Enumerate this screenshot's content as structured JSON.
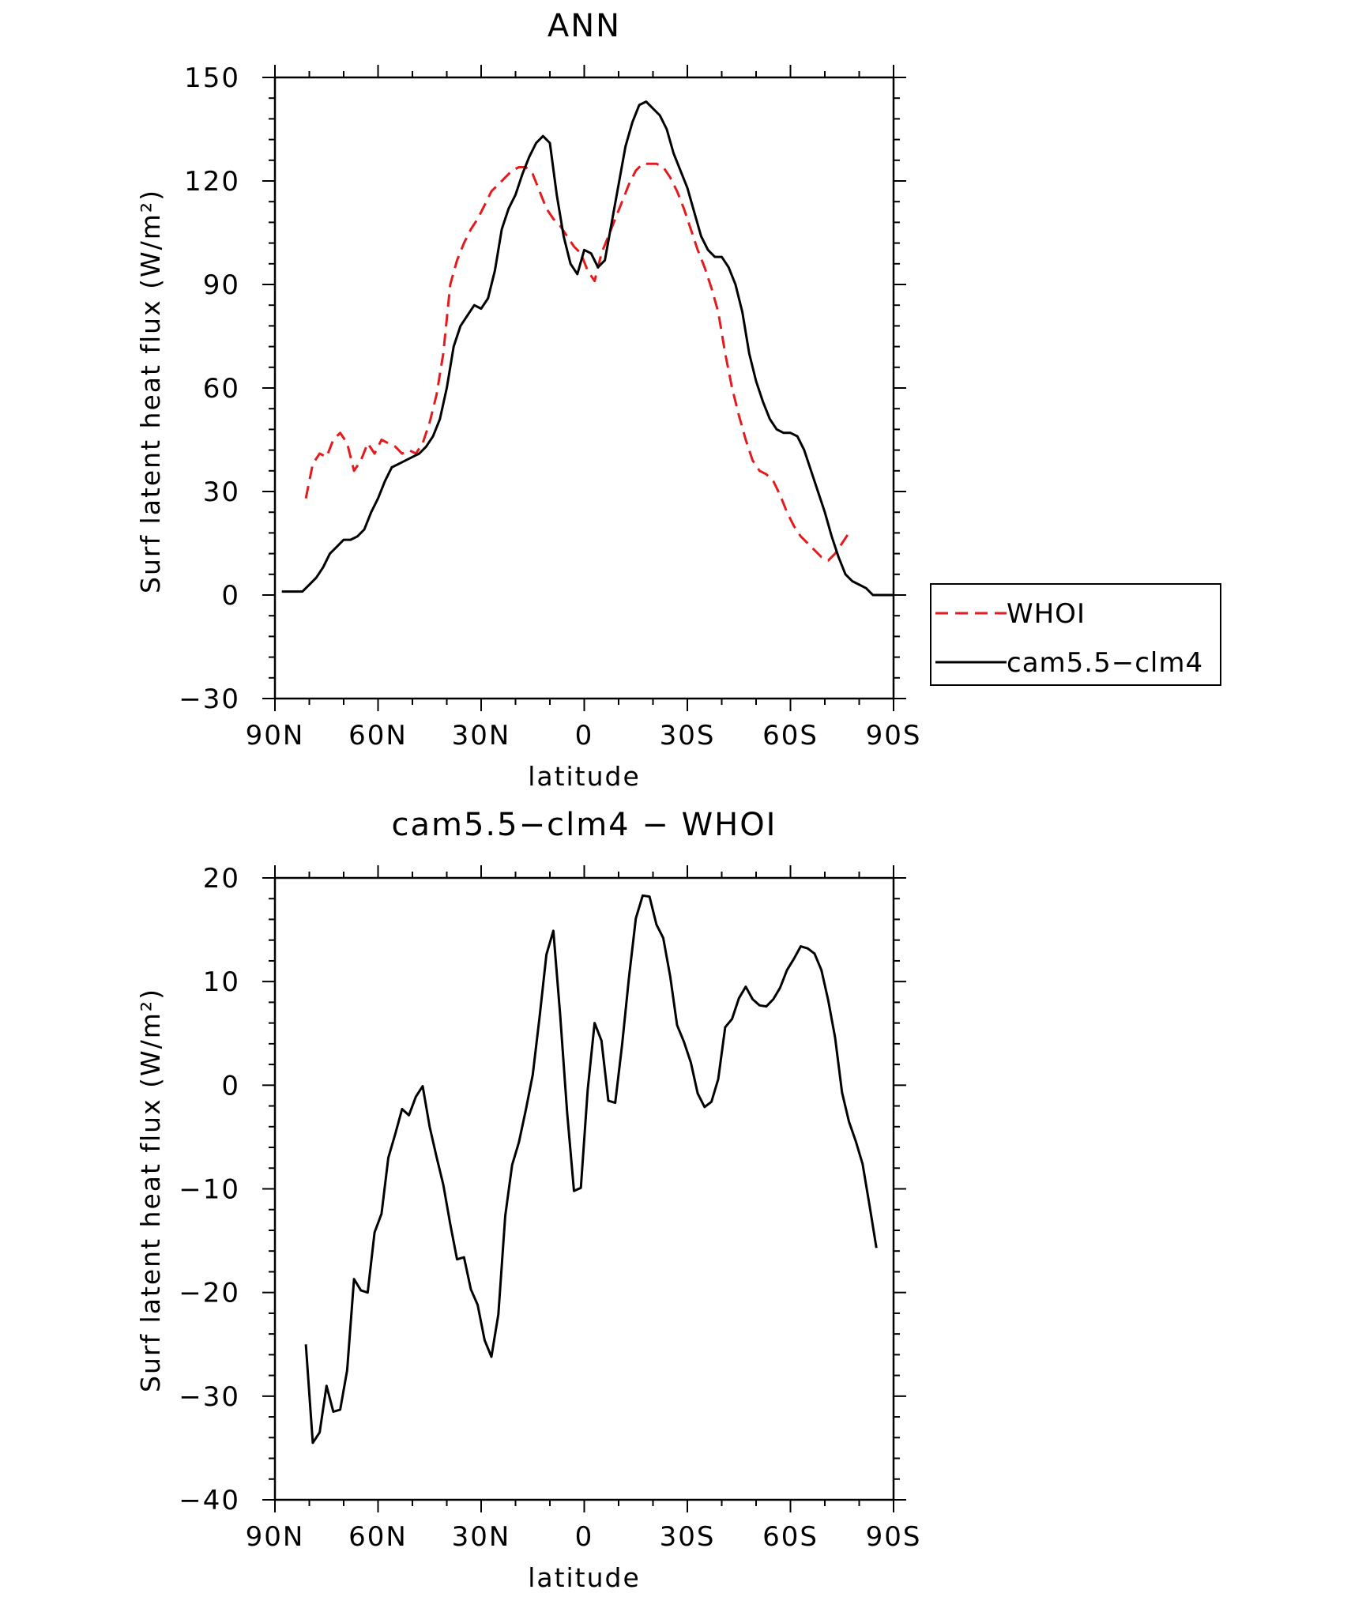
{
  "chart_data": [
    {
      "type": "line",
      "title": "ANN",
      "xlabel": "latitude",
      "ylabel": "Surf latent heat flux (W/m²)",
      "xlim": [
        90,
        -90
      ],
      "ylim": [
        -30,
        150
      ],
      "x_ticks": [
        90,
        60,
        30,
        0,
        -30,
        -60,
        -90
      ],
      "x_tick_labels": [
        "90N",
        "60N",
        "30N",
        "0",
        "30S",
        "60S",
        "90S"
      ],
      "y_ticks": [
        -30,
        0,
        30,
        60,
        90,
        120,
        150
      ],
      "y_tick_labels": [
        "−30",
        "0",
        "30",
        "60",
        "90",
        "120",
        "150"
      ],
      "legend": "right",
      "series": [
        {
          "name": "WHOI",
          "color": "#e41a1c",
          "dash": "dashed",
          "points": [
            [
              81,
              28
            ],
            [
              79,
              38
            ],
            [
              77,
              41
            ],
            [
              75,
              40
            ],
            [
              73,
              45
            ],
            [
              71,
              47
            ],
            [
              69,
              44
            ],
            [
              67,
              36
            ],
            [
              65,
              39
            ],
            [
              63,
              44
            ],
            [
              61,
              41
            ],
            [
              59,
              45
            ],
            [
              57,
              44
            ],
            [
              55,
              43
            ],
            [
              53,
              41
            ],
            [
              51,
              42
            ],
            [
              49,
              41
            ],
            [
              47,
              44
            ],
            [
              45,
              50
            ],
            [
              43,
              58
            ],
            [
              41,
              70
            ],
            [
              39,
              90
            ],
            [
              37,
              97
            ],
            [
              35,
              102
            ],
            [
              33,
              106
            ],
            [
              31,
              109
            ],
            [
              29,
              113
            ],
            [
              27,
              117
            ],
            [
              25,
              119
            ],
            [
              23,
              121
            ],
            [
              21,
              123
            ],
            [
              19,
              124
            ],
            [
              17,
              124
            ],
            [
              15,
              122
            ],
            [
              13,
              117
            ],
            [
              11,
              112
            ],
            [
              9,
              109
            ],
            [
              7,
              107
            ],
            [
              5,
              104
            ],
            [
              3,
              101
            ],
            [
              1,
              99
            ],
            [
              -1,
              94
            ],
            [
              -3,
              91
            ],
            [
              -5,
              99
            ],
            [
              -7,
              104
            ],
            [
              -9,
              109
            ],
            [
              -11,
              114
            ],
            [
              -13,
              119
            ],
            [
              -15,
              123
            ],
            [
              -17,
              125
            ],
            [
              -19,
              125
            ],
            [
              -21,
              125
            ],
            [
              -23,
              124
            ],
            [
              -25,
              121
            ],
            [
              -27,
              117
            ],
            [
              -29,
              112
            ],
            [
              -31,
              106
            ],
            [
              -33,
              100
            ],
            [
              -35,
              95
            ],
            [
              -37,
              89
            ],
            [
              -39,
              82
            ],
            [
              -41,
              70
            ],
            [
              -43,
              60
            ],
            [
              -45,
              52
            ],
            [
              -47,
              45
            ],
            [
              -49,
              39
            ],
            [
              -51,
              36
            ],
            [
              -53,
              35
            ],
            [
              -55,
              33
            ],
            [
              -57,
              29
            ],
            [
              -59,
              24
            ],
            [
              -61,
              20
            ],
            [
              -63,
              17
            ],
            [
              -65,
              15
            ],
            [
              -67,
              13
            ],
            [
              -69,
              11
            ],
            [
              -71,
              10
            ],
            [
              -73,
              12
            ],
            [
              -75,
              15
            ],
            [
              -77,
              18
            ]
          ]
        },
        {
          "name": "cam5.5−clm4",
          "color": "#000000",
          "dash": "solid",
          "points": [
            [
              88,
              1
            ],
            [
              86,
              1
            ],
            [
              84,
              1
            ],
            [
              82,
              1
            ],
            [
              80,
              3
            ],
            [
              78,
              5
            ],
            [
              76,
              8
            ],
            [
              74,
              12
            ],
            [
              72,
              14
            ],
            [
              70,
              16
            ],
            [
              68,
              16
            ],
            [
              66,
              17
            ],
            [
              64,
              19
            ],
            [
              62,
              24
            ],
            [
              60,
              28
            ],
            [
              58,
              33
            ],
            [
              56,
              37
            ],
            [
              54,
              38
            ],
            [
              52,
              39
            ],
            [
              50,
              40
            ],
            [
              48,
              41
            ],
            [
              46,
              43
            ],
            [
              44,
              46
            ],
            [
              42,
              51
            ],
            [
              40,
              60
            ],
            [
              38,
              72
            ],
            [
              36,
              78
            ],
            [
              34,
              81
            ],
            [
              32,
              84
            ],
            [
              30,
              83
            ],
            [
              28,
              86
            ],
            [
              26,
              94
            ],
            [
              24,
              106
            ],
            [
              22,
              112
            ],
            [
              20,
              116
            ],
            [
              18,
              122
            ],
            [
              16,
              127
            ],
            [
              14,
              131
            ],
            [
              12,
              133
            ],
            [
              10,
              131
            ],
            [
              8,
              116
            ],
            [
              6,
              104
            ],
            [
              4,
              96
            ],
            [
              2,
              93
            ],
            [
              0,
              100
            ],
            [
              -2,
              99
            ],
            [
              -4,
              95
            ],
            [
              -6,
              97
            ],
            [
              -8,
              108
            ],
            [
              -10,
              119
            ],
            [
              -12,
              130
            ],
            [
              -14,
              137
            ],
            [
              -16,
              142
            ],
            [
              -18,
              143
            ],
            [
              -20,
              141
            ],
            [
              -22,
              139
            ],
            [
              -24,
              135
            ],
            [
              -26,
              128
            ],
            [
              -28,
              123
            ],
            [
              -30,
              118
            ],
            [
              -32,
              111
            ],
            [
              -34,
              104
            ],
            [
              -36,
              100
            ],
            [
              -38,
              98
            ],
            [
              -40,
              98
            ],
            [
              -42,
              95
            ],
            [
              -44,
              90
            ],
            [
              -46,
              82
            ],
            [
              -48,
              70
            ],
            [
              -50,
              62
            ],
            [
              -52,
              56
            ],
            [
              -54,
              51
            ],
            [
              -56,
              48
            ],
            [
              -58,
              47
            ],
            [
              -60,
              47
            ],
            [
              -62,
              46
            ],
            [
              -64,
              42
            ],
            [
              -66,
              36
            ],
            [
              -68,
              30
            ],
            [
              -70,
              24
            ],
            [
              -72,
              17
            ],
            [
              -74,
              11
            ],
            [
              -76,
              6
            ],
            [
              -78,
              4
            ],
            [
              -80,
              3
            ],
            [
              -82,
              2
            ],
            [
              -84,
              0
            ],
            [
              -86,
              0
            ],
            [
              -88,
              0
            ],
            [
              -90,
              0
            ]
          ]
        }
      ]
    },
    {
      "type": "line",
      "title": "cam5.5−clm4 − WHOI",
      "xlabel": "latitude",
      "ylabel": "Surf latent heat flux (W/m²)",
      "xlim": [
        90,
        -90
      ],
      "ylim": [
        -40,
        20
      ],
      "x_ticks": [
        90,
        60,
        30,
        0,
        -30,
        -60,
        -90
      ],
      "x_tick_labels": [
        "90N",
        "60N",
        "30N",
        "0",
        "30S",
        "60S",
        "90S"
      ],
      "y_ticks": [
        -40,
        -30,
        -20,
        -10,
        0,
        10,
        20
      ],
      "y_tick_labels": [
        "−40",
        "−30",
        "−20",
        "−10",
        "0",
        "10",
        "20"
      ],
      "series": [
        {
          "name": "",
          "color": "#000000",
          "dash": "solid",
          "points": [
            [
              81,
              -25
            ],
            [
              79,
              -34.5
            ],
            [
              77,
              -33.5
            ],
            [
              75,
              -29
            ],
            [
              73,
              -31.5
            ],
            [
              71,
              -31.3
            ],
            [
              69,
              -27.5
            ],
            [
              67,
              -18.7
            ],
            [
              65,
              -19.8
            ],
            [
              63,
              -20
            ],
            [
              61,
              -14.2
            ],
            [
              59,
              -12.4
            ],
            [
              57,
              -7
            ],
            [
              55,
              -4.7
            ],
            [
              53,
              -2.3
            ],
            [
              51,
              -2.9
            ],
            [
              49,
              -1.1
            ],
            [
              47,
              -0.1
            ],
            [
              45,
              -4
            ],
            [
              43,
              -6.9
            ],
            [
              41,
              -9.6
            ],
            [
              39,
              -13.4
            ],
            [
              37,
              -16.8
            ],
            [
              35,
              -16.6
            ],
            [
              33,
              -19.7
            ],
            [
              31,
              -21.2
            ],
            [
              29,
              -24.6
            ],
            [
              27,
              -26.2
            ],
            [
              25,
              -22.1
            ],
            [
              23,
              -12.6
            ],
            [
              21,
              -7.7
            ],
            [
              19,
              -5.5
            ],
            [
              17,
              -2.4
            ],
            [
              15,
              1
            ],
            [
              13,
              6.6
            ],
            [
              11,
              12.6
            ],
            [
              9,
              14.9
            ],
            [
              7,
              6.8
            ],
            [
              5,
              -2.6
            ],
            [
              3,
              -10.2
            ],
            [
              1,
              -9.9
            ],
            [
              -1,
              -0.5
            ],
            [
              -3,
              6
            ],
            [
              -5,
              4.3
            ],
            [
              -7,
              -1.5
            ],
            [
              -9,
              -1.7
            ],
            [
              -11,
              3.9
            ],
            [
              -13,
              10.3
            ],
            [
              -15,
              16.1
            ],
            [
              -17,
              18.3
            ],
            [
              -19,
              18.2
            ],
            [
              -21,
              15.5
            ],
            [
              -23,
              14.2
            ],
            [
              -25,
              10.5
            ],
            [
              -27,
              5.8
            ],
            [
              -29,
              4.2
            ],
            [
              -31,
              2.2
            ],
            [
              -33,
              -0.8
            ],
            [
              -35,
              -2.1
            ],
            [
              -37,
              -1.6
            ],
            [
              -39,
              0.6
            ],
            [
              -41,
              5.6
            ],
            [
              -43,
              6.4
            ],
            [
              -45,
              8.4
            ],
            [
              -47,
              9.5
            ],
            [
              -49,
              8.3
            ],
            [
              -51,
              7.7
            ],
            [
              -53,
              7.6
            ],
            [
              -55,
              8.3
            ],
            [
              -57,
              9.4
            ],
            [
              -59,
              11.1
            ],
            [
              -61,
              12.2
            ],
            [
              -63,
              13.4
            ],
            [
              -65,
              13.2
            ],
            [
              -67,
              12.7
            ],
            [
              -69,
              11.1
            ],
            [
              -71,
              8.2
            ],
            [
              -73,
              4.6
            ],
            [
              -75,
              -0.7
            ],
            [
              -77,
              -3.5
            ],
            [
              -79,
              -5.4
            ],
            [
              -81,
              -7.6
            ],
            [
              -83,
              -11.6
            ],
            [
              -85,
              -15.7
            ]
          ]
        }
      ]
    }
  ]
}
